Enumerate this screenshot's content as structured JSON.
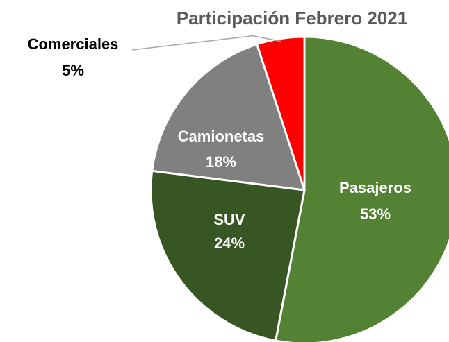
{
  "chart_data": {
    "type": "pie",
    "title": "Participación Febrero 2021",
    "categories": [
      "Pasajeros",
      "SUV",
      "Camionetas",
      "Comerciales"
    ],
    "values": [
      53,
      24,
      18,
      5
    ],
    "value_labels": [
      "53%",
      "24%",
      "18%",
      "5%"
    ],
    "colors": [
      "#548235",
      "#375623",
      "#808080",
      "#ff0000"
    ]
  }
}
